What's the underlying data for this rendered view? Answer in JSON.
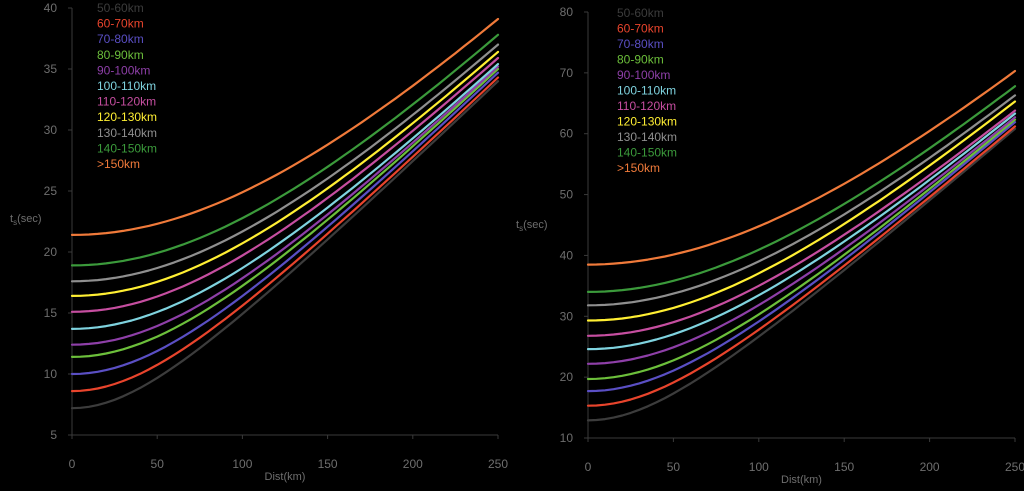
{
  "chart_data": [
    {
      "type": "line",
      "title": "",
      "xlabel": "Dist(km)",
      "ylabel": "t",
      "ylabel_sub": "s",
      "ylabel_unit": "(sec)",
      "xlim": [
        0,
        250
      ],
      "ylim": [
        5,
        40
      ],
      "xticks": [
        0,
        50,
        100,
        150,
        200,
        250
      ],
      "yticks": [
        5,
        10,
        15,
        20,
        25,
        30,
        35,
        40
      ],
      "grid": false,
      "legend_position": "top-left",
      "series": [
        {
          "name": "50-60km",
          "color": "#3c3c3c",
          "t0": 7.2,
          "end": 34.0,
          "vel": 8.23
        },
        {
          "name": "60-70km",
          "color": "#e8442c",
          "t0": 8.6,
          "end": 34.3,
          "vel": 8.33
        },
        {
          "name": "70-80km",
          "color": "#5a4fc4",
          "t0": 10.0,
          "end": 34.7,
          "vel": 8.44
        },
        {
          "name": "80-90km",
          "color": "#6cbf3b",
          "t0": 11.4,
          "end": 35.0,
          "vel": 8.54
        },
        {
          "name": "90-100km",
          "color": "#8e3fa8",
          "t0": 12.4,
          "end": 35.2,
          "vel": 8.64
        },
        {
          "name": "100-110km",
          "color": "#7fd3df",
          "t0": 13.7,
          "end": 35.4,
          "vel": 8.77
        },
        {
          "name": "110-120km",
          "color": "#c64ea0",
          "t0": 15.1,
          "end": 35.9,
          "vel": 8.87
        },
        {
          "name": "120-130km",
          "color": "#ffef33",
          "t0": 16.4,
          "end": 36.4,
          "vel": 8.93
        },
        {
          "name": "130-140km",
          "color": "#8f8f8f",
          "t0": 17.6,
          "end": 37.0,
          "vel": 9.0
        },
        {
          "name": "140-150km",
          "color": "#3b9a3b",
          "t0": 18.9,
          "end": 37.8,
          "vel": 9.09
        },
        {
          "name": ">150km",
          "color": "#f07a3a",
          "t0": 21.4,
          "end": 39.1,
          "vel": 9.13
        }
      ]
    },
    {
      "type": "line",
      "title": "",
      "xlabel": "Dist(km)",
      "ylabel": "t",
      "ylabel_sub": "s",
      "ylabel_unit": "(sec)",
      "xlim": [
        0,
        250
      ],
      "ylim": [
        10,
        80
      ],
      "xticks": [
        0,
        50,
        100,
        150,
        200,
        250
      ],
      "yticks": [
        10,
        20,
        30,
        40,
        50,
        60,
        70,
        80
      ],
      "grid": false,
      "legend_position": "top-left",
      "series": [
        {
          "name": "50-60km",
          "color": "#3c3c3c",
          "t0": 12.9,
          "end": 60.8,
          "vel": 4.63
        },
        {
          "name": "60-70km",
          "color": "#e8442c",
          "t0": 15.3,
          "end": 61.2,
          "vel": 4.7
        },
        {
          "name": "70-80km",
          "color": "#5a4fc4",
          "t0": 17.7,
          "end": 61.9,
          "vel": 4.76
        },
        {
          "name": "80-90km",
          "color": "#6cbf3b",
          "t0": 19.7,
          "end": 62.3,
          "vel": 4.81
        },
        {
          "name": "90-100km",
          "color": "#8e3fa8",
          "t0": 22.2,
          "end": 62.7,
          "vel": 4.89
        },
        {
          "name": "100-110km",
          "color": "#7fd3df",
          "t0": 24.6,
          "end": 63.3,
          "vel": 4.95
        },
        {
          "name": "110-120km",
          "color": "#c64ea0",
          "t0": 26.8,
          "end": 63.8,
          "vel": 5.0
        },
        {
          "name": "120-130km",
          "color": "#ffef33",
          "t0": 29.3,
          "end": 65.3,
          "vel": 5.0
        },
        {
          "name": "130-140km",
          "color": "#8f8f8f",
          "t0": 31.8,
          "end": 66.3,
          "vel": 5.05
        },
        {
          "name": "140-150km",
          "color": "#3b9a3b",
          "t0": 34.0,
          "end": 67.8,
          "vel": 5.05
        },
        {
          "name": ">150km",
          "color": "#f07a3a",
          "t0": 38.5,
          "end": 70.3,
          "vel": 5.1
        }
      ]
    }
  ]
}
